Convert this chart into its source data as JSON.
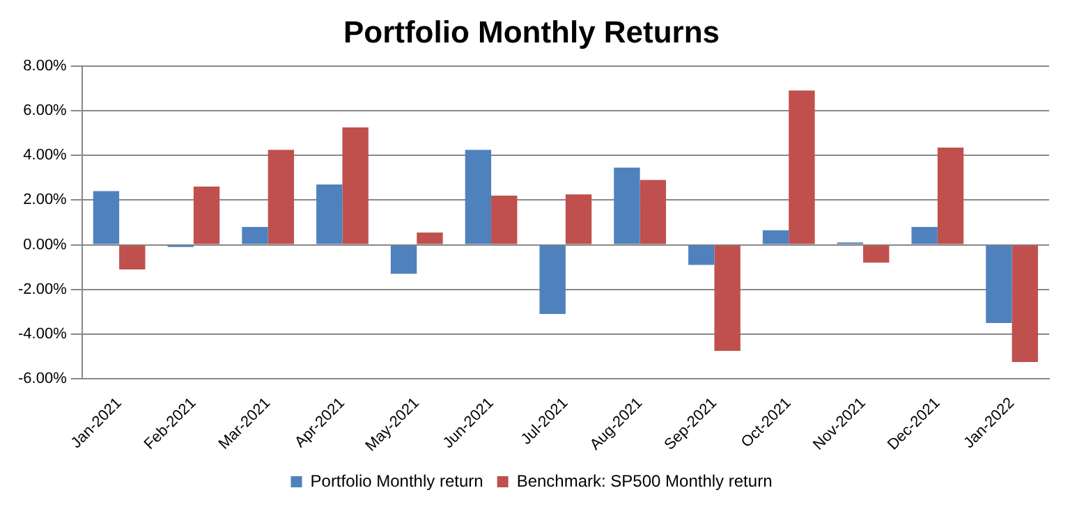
{
  "chart_data": {
    "type": "bar",
    "title": "Portfolio Monthly Returns",
    "categories": [
      "Jan-2021",
      "Feb-2021",
      "Mar-2021",
      "Apr-2021",
      "May-2021",
      "Jun-2021",
      "Jul-2021",
      "Aug-2021",
      "Sep-2021",
      "Oct-2021",
      "Nov-2021",
      "Dec-2021",
      "Jan-2022"
    ],
    "series": [
      {
        "name": "Portfolio Monthly return",
        "color": "#4f81bd",
        "values": [
          2.4,
          -0.1,
          0.8,
          2.7,
          -1.3,
          4.25,
          -3.1,
          3.45,
          -0.9,
          0.65,
          0.1,
          0.8,
          -3.5
        ]
      },
      {
        "name": "Benchmark: SP500 Monthly return",
        "color": "#c0504d",
        "values": [
          -1.1,
          2.6,
          4.25,
          5.25,
          0.55,
          2.2,
          2.25,
          2.9,
          -4.75,
          6.9,
          -0.8,
          4.35,
          -5.25
        ]
      }
    ],
    "ylim": [
      -6,
      8
    ],
    "yticks": [
      {
        "value": -6,
        "label": "-6.00%"
      },
      {
        "value": -4,
        "label": "-4.00%"
      },
      {
        "value": -2,
        "label": "-2.00%"
      },
      {
        "value": 0,
        "label": "0.00%"
      },
      {
        "value": 2,
        "label": "2.00%"
      },
      {
        "value": 4,
        "label": "4.00%"
      },
      {
        "value": 6,
        "label": "6.00%"
      },
      {
        "value": 8,
        "label": "8.00%"
      }
    ],
    "grid": "y",
    "legend": "bottom"
  }
}
